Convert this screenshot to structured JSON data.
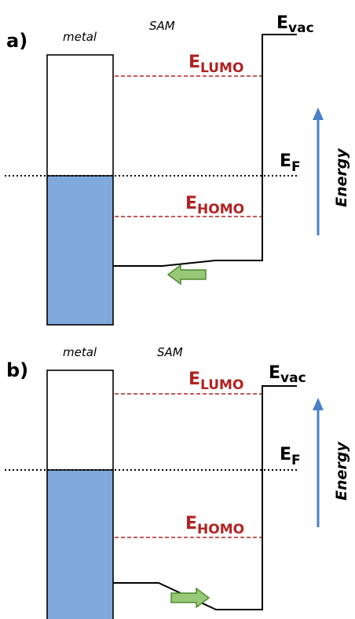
{
  "colors": {
    "orbital_red": "#b22222",
    "filled_blue": "#7fa8dc",
    "energy_arrow": "#4a80c8",
    "dipole_arrow_fill": "#96c878",
    "dipole_arrow_stroke": "#4e8a2e"
  },
  "panels": [
    {
      "label": "a)",
      "metal_label": "metal",
      "sam_label": "SAM",
      "vac_main": "E",
      "vac_sub": "vac",
      "lumo_main": "E",
      "lumo_sub": "LUMO",
      "homo_main": "E",
      "homo_sub": "HOMO",
      "fermi_main": "E",
      "fermi_sub": "F",
      "energy_label": "Energy",
      "dipole_arrow_direction": "left",
      "energy_arrow_icon": "up-arrow-icon"
    },
    {
      "label": "b)",
      "metal_label": "metal",
      "sam_label": "SAM",
      "vac_main": "E",
      "vac_sub": "vac",
      "lumo_main": "E",
      "lumo_sub": "LUMO",
      "homo_main": "E",
      "homo_sub": "HOMO",
      "fermi_main": "E",
      "fermi_sub": "F",
      "energy_label": "Energy",
      "dipole_arrow_direction": "right",
      "energy_arrow_icon": "up-arrow-icon"
    }
  ]
}
